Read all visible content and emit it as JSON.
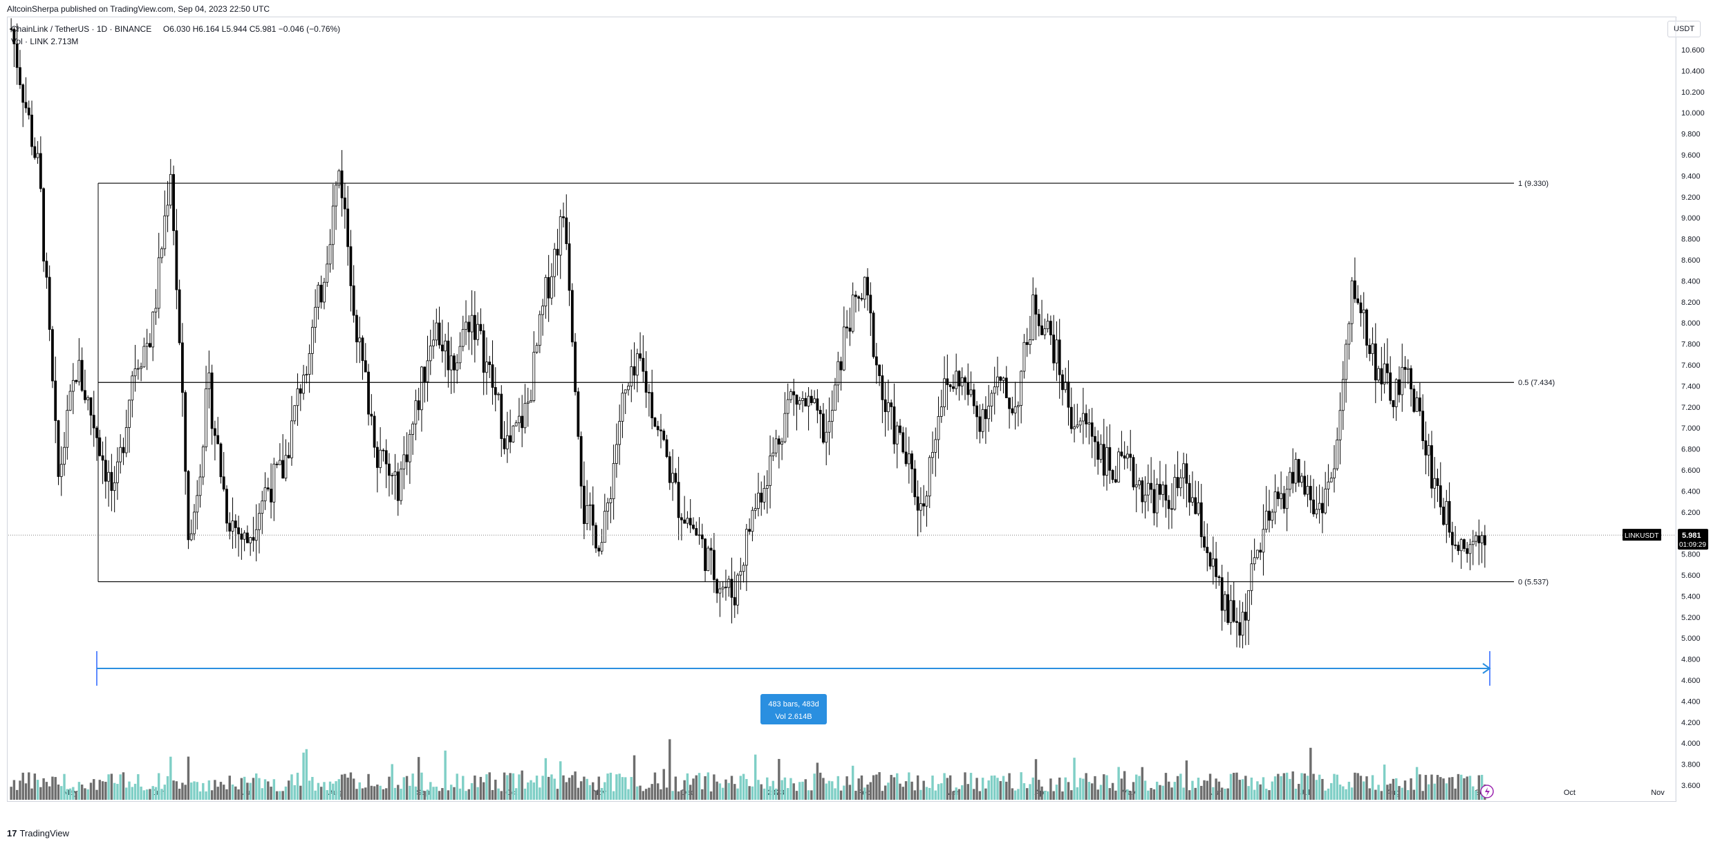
{
  "publisher_line": "AltcoinSherpa published on TradingView.com, Sep 04, 2023 22:50 UTC",
  "legend": {
    "symbol": "ChainLink / TetherUS",
    "interval": "1D",
    "exchange": "BINANCE",
    "open": "O6.030",
    "high": "H6.164",
    "low": "L5.944",
    "close": "C5.981",
    "change": "−0.046 (−0.76%)",
    "volume_label": "Vol · LINK",
    "volume_value": "2.713M"
  },
  "currency": "USDT",
  "footer": "TradingView",
  "chart_data": {
    "type": "candlestick",
    "symbol": "LINKUSDT",
    "last_price": "5.981",
    "countdown": "01:09:29",
    "y_ticks": [
      "10.600",
      "10.400",
      "10.200",
      "10.000",
      "9.800",
      "9.600",
      "9.400",
      "9.200",
      "9.000",
      "8.800",
      "8.600",
      "8.400",
      "8.200",
      "8.000",
      "7.800",
      "7.600",
      "7.400",
      "7.200",
      "7.000",
      "6.800",
      "6.600",
      "6.400",
      "6.200",
      "6.000",
      "5.800",
      "5.600",
      "5.400",
      "5.200",
      "5.000",
      "4.800",
      "4.600",
      "4.400",
      "4.200",
      "4.000",
      "3.800",
      "3.600"
    ],
    "x_ticks": [
      "May",
      "Jun",
      "Jul",
      "Aug",
      "Sep",
      "Oct",
      "Nov",
      "Dec",
      "2023",
      "Feb",
      "Mar",
      "Apr",
      "May",
      "Jun",
      "Jul",
      "Aug",
      "Sep",
      "Oct",
      "Nov"
    ],
    "ylim": [
      3.5,
      10.7
    ],
    "fib_levels": [
      {
        "label": "1 (9.330)",
        "value": 9.33
      },
      {
        "label": "0.5 (7.434)",
        "value": 7.434
      },
      {
        "label": "0 (5.537)",
        "value": 5.537
      }
    ],
    "range_measure": {
      "bars_label": "483 bars, 483d",
      "vol_label": "Vol 2.614B"
    },
    "price_path_approx": [
      [
        0,
        10.8
      ],
      [
        6,
        9.4
      ],
      [
        10,
        6.5
      ],
      [
        14,
        7.6
      ],
      [
        18,
        7.0
      ],
      [
        22,
        6.3
      ],
      [
        26,
        7.6
      ],
      [
        30,
        7.9
      ],
      [
        34,
        9.5
      ],
      [
        38,
        5.8
      ],
      [
        42,
        7.4
      ],
      [
        46,
        6.2
      ],
      [
        50,
        5.9
      ],
      [
        54,
        6.4
      ],
      [
        58,
        6.6
      ],
      [
        62,
        7.5
      ],
      [
        66,
        8.3
      ],
      [
        70,
        9.5
      ],
      [
        74,
        7.8
      ],
      [
        78,
        6.8
      ],
      [
        82,
        6.4
      ],
      [
        86,
        7.1
      ],
      [
        90,
        8.0
      ],
      [
        94,
        7.6
      ],
      [
        98,
        8.1
      ],
      [
        102,
        7.5
      ],
      [
        106,
        6.8
      ],
      [
        110,
        7.2
      ],
      [
        114,
        8.3
      ],
      [
        118,
        9.1
      ],
      [
        122,
        6.2
      ],
      [
        126,
        5.9
      ],
      [
        130,
        7.2
      ],
      [
        134,
        7.6
      ],
      [
        138,
        7.0
      ],
      [
        142,
        6.3
      ],
      [
        146,
        6.0
      ],
      [
        150,
        5.6
      ],
      [
        154,
        5.4
      ],
      [
        158,
        6.2
      ],
      [
        162,
        6.7
      ],
      [
        166,
        7.3
      ],
      [
        170,
        7.2
      ],
      [
        174,
        6.9
      ],
      [
        178,
        8.0
      ],
      [
        182,
        8.3
      ],
      [
        186,
        7.2
      ],
      [
        190,
        6.8
      ],
      [
        194,
        6.2
      ],
      [
        198,
        7.3
      ],
      [
        202,
        7.5
      ],
      [
        206,
        7.1
      ],
      [
        210,
        7.4
      ],
      [
        214,
        7.2
      ],
      [
        218,
        8.2
      ],
      [
        222,
        7.8
      ],
      [
        226,
        7.1
      ],
      [
        230,
        7.0
      ],
      [
        234,
        6.6
      ],
      [
        238,
        6.6
      ],
      [
        242,
        6.4
      ],
      [
        246,
        6.3
      ],
      [
        250,
        6.5
      ],
      [
        254,
        6.0
      ],
      [
        258,
        5.3
      ],
      [
        262,
        5.1
      ],
      [
        266,
        5.9
      ],
      [
        270,
        6.3
      ],
      [
        274,
        6.6
      ],
      [
        278,
        6.2
      ],
      [
        282,
        6.6
      ],
      [
        286,
        8.4
      ],
      [
        290,
        7.7
      ],
      [
        294,
        7.3
      ],
      [
        298,
        7.5
      ],
      [
        302,
        6.7
      ],
      [
        306,
        6.1
      ],
      [
        310,
        5.9
      ],
      [
        314,
        6.0
      ]
    ]
  }
}
